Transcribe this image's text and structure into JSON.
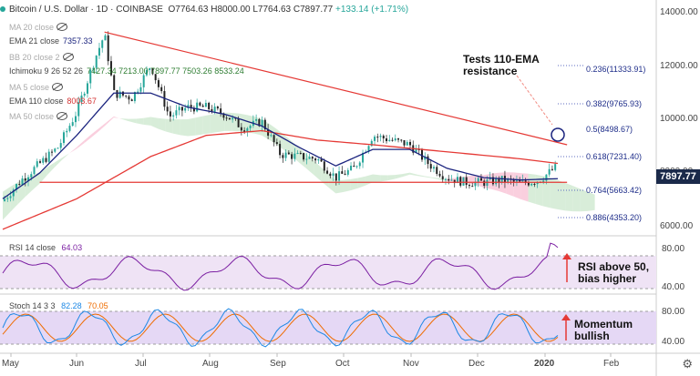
{
  "header": {
    "symbol": "Bitcoin / U.S. Dollar · 1D · COINBASE",
    "open": "O7764.63",
    "high": "H8000.00",
    "low": "L7764.63",
    "close": "C7897.77",
    "change": "+133.14 (+1.71%)"
  },
  "legend": [
    {
      "name": "MA 20 close",
      "value": "",
      "color": "#aaaaaa",
      "hidden": true
    },
    {
      "name": "EMA 21 close",
      "value": "7357.33",
      "color": "#1a237e",
      "hidden": false
    },
    {
      "name": "BB 20 close 2",
      "value": "",
      "color": "#aaaaaa",
      "hidden": true
    },
    {
      "name": "Ichimoku 9 26 52 26",
      "value": "7427.34  7213.00  7897.77  7503.26  8533.24",
      "color": "#2e7d32",
      "hidden": false
    },
    {
      "name": "MA 5 close",
      "value": "",
      "color": "#aaaaaa",
      "hidden": true
    },
    {
      "name": "EMA 110 close",
      "value": "8003.67",
      "color": "#d32f2f",
      "hidden": false
    },
    {
      "name": "MA 50 close",
      "value": "",
      "color": "#aaaaaa",
      "hidden": true
    }
  ],
  "annotations": {
    "tests": "Tests 110-EMA resistance",
    "rsi": "RSI above 50, bias higher",
    "stoch": "Momentum bullish"
  },
  "fib_levels": [
    {
      "ratio": "0.236",
      "price": "11333.91",
      "label": "0.236(11333.91)"
    },
    {
      "ratio": "0.382",
      "price": "9765.93",
      "label": "0.382(9765.93)"
    },
    {
      "ratio": "0.5",
      "price": "8498.67",
      "label": "0.5(8498.67)"
    },
    {
      "ratio": "0.618",
      "price": "7231.40",
      "label": "0.618(7231.40)"
    },
    {
      "ratio": "0.764",
      "price": "5663.42",
      "label": "0.764(5663.42)"
    },
    {
      "ratio": "0.886",
      "price": "4353.20",
      "label": "0.886(4353.20)"
    }
  ],
  "price_axis": [
    "14000.00",
    "12000.00",
    "10000.00",
    "8000.00",
    "6000.00"
  ],
  "current_price": "7897.77",
  "rsi": {
    "label": "RSI 14 close",
    "value": "64.03",
    "axis": [
      "80.00",
      "40.00"
    ]
  },
  "stoch": {
    "label": "Stoch 14 3 3",
    "k": "82.28",
    "d": "70.05",
    "axis": [
      "80.00",
      "40.00"
    ]
  },
  "time_axis": [
    "May",
    "Jun",
    "Jul",
    "Aug",
    "Sep",
    "Oct",
    "Nov",
    "Dec",
    "2020",
    "Feb"
  ],
  "colors": {
    "candle_up": "#26a69a",
    "candle_down": "#222222",
    "ema21": "#1a237e",
    "ema110": "#e53935",
    "cloud_green": "#c8e6c9",
    "cloud_red": "#f8bbd0",
    "rsi_line": "#7b1fa2",
    "stoch_k": "#1e88e5",
    "stoch_d": "#ef6c00",
    "band_fill": "#e1bee7"
  },
  "chart_data": {
    "type": "candlestick",
    "symbol": "BTCUSD",
    "timeframe": "1D",
    "series_close": [
      [
        0,
        6400
      ],
      [
        10,
        7300
      ],
      [
        20,
        8000
      ],
      [
        30,
        8700
      ],
      [
        40,
        10200
      ],
      [
        50,
        12500
      ],
      [
        55,
        13500
      ],
      [
        60,
        11000
      ],
      [
        70,
        10800
      ],
      [
        80,
        12200
      ],
      [
        90,
        10000
      ],
      [
        100,
        10400
      ],
      [
        110,
        10400
      ],
      [
        120,
        10100
      ],
      [
        130,
        9500
      ],
      [
        140,
        9800
      ],
      [
        150,
        8400
      ],
      [
        160,
        8300
      ],
      [
        170,
        8200
      ],
      [
        180,
        7400
      ],
      [
        190,
        7800
      ],
      [
        200,
        9200
      ],
      [
        210,
        9000
      ],
      [
        220,
        8800
      ],
      [
        230,
        8000
      ],
      [
        240,
        7400
      ],
      [
        250,
        7200
      ],
      [
        260,
        7200
      ],
      [
        270,
        7300
      ],
      [
        280,
        7150
      ],
      [
        290,
        7300
      ],
      [
        300,
        7900
      ]
    ],
    "ema21": [
      [
        0,
        6500
      ],
      [
        20,
        7600
      ],
      [
        40,
        9200
      ],
      [
        60,
        11000
      ],
      [
        80,
        11000
      ],
      [
        100,
        10400
      ],
      [
        120,
        10100
      ],
      [
        140,
        9600
      ],
      [
        160,
        8700
      ],
      [
        180,
        7900
      ],
      [
        200,
        8600
      ],
      [
        220,
        8600
      ],
      [
        240,
        7800
      ],
      [
        260,
        7400
      ],
      [
        280,
        7300
      ],
      [
        300,
        7357
      ]
    ],
    "ema110": [
      [
        0,
        5200
      ],
      [
        40,
        6500
      ],
      [
        80,
        8300
      ],
      [
        110,
        9200
      ],
      [
        140,
        9400
      ],
      [
        170,
        9000
      ],
      [
        200,
        8800
      ],
      [
        240,
        8500
      ],
      [
        280,
        8200
      ],
      [
        300,
        8004
      ]
    ],
    "trendlines": {
      "upper": [
        [
          55,
          13600
        ],
        [
          305,
          8800
        ]
      ],
      "lower": [
        [
          20,
          7200
        ],
        [
          305,
          7200
        ]
      ]
    },
    "ylim": [
      5000,
      14500
    ]
  }
}
